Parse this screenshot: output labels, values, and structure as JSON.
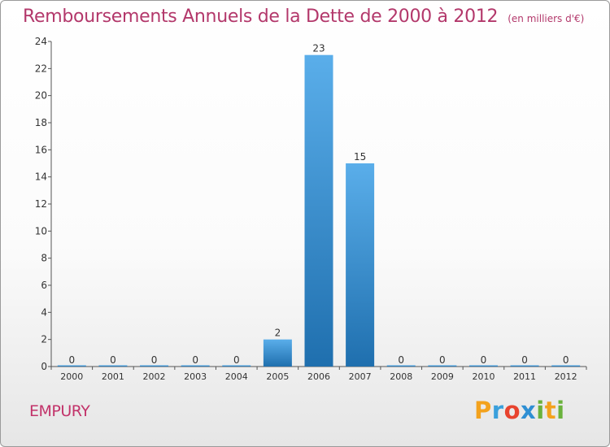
{
  "chart_data": {
    "type": "bar",
    "title": "Remboursements Annuels de la Dette de 2000 à 2012",
    "subtitle": "(en milliers d'€)",
    "categories": [
      "2000",
      "2001",
      "2002",
      "2003",
      "2004",
      "2005",
      "2006",
      "2007",
      "2008",
      "2009",
      "2010",
      "2011",
      "2012"
    ],
    "values": [
      0,
      0,
      0,
      0,
      0,
      2,
      23,
      15,
      0,
      0,
      0,
      0,
      0
    ],
    "value_labels": [
      "0",
      "0",
      "0",
      "0",
      "0",
      "2",
      "23",
      "15",
      "0",
      "0",
      "0",
      "0",
      "0"
    ],
    "yticks": [
      "0",
      "2",
      "4",
      "6",
      "8",
      "10",
      "12",
      "14",
      "16",
      "18",
      "20",
      "22",
      "24"
    ],
    "ylim": [
      0,
      24
    ],
    "xlabel": "",
    "ylabel": "",
    "grid": false,
    "bar_color": "#3a8fd4"
  },
  "footer": {
    "commune": "EMPURY",
    "brand_letters": [
      "P",
      "r",
      "o",
      "x",
      "i",
      "t",
      "i"
    ],
    "brand_colors": [
      "#f3a21d",
      "#3aa0dc",
      "#e8432e",
      "#2f8fd3",
      "#6ab23c",
      "#f3a21d",
      "#6ab23c"
    ]
  }
}
